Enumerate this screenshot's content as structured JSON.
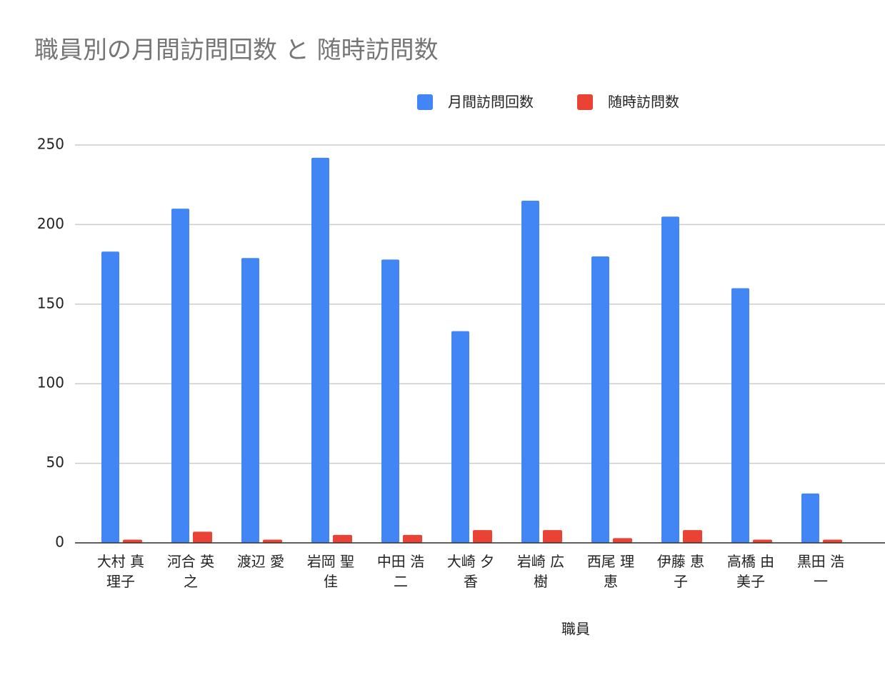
{
  "chart_data": {
    "type": "bar",
    "title": "職員別の月間訪問回数 と 随時訪問数",
    "x_label": "職員",
    "categories": [
      "大村 真理子",
      "河合 英之",
      "渡辺 愛",
      "岩岡 聖佳",
      "中田 浩二",
      "大崎 夕香",
      "岩崎 広樹",
      "西尾 理恵",
      "伊藤 恵子",
      "高橋 由美子",
      "黒田 浩一"
    ],
    "series": [
      {
        "name": "月間訪問回数",
        "color": "#4285f4",
        "values": [
          183,
          210,
          179,
          242,
          178,
          133,
          215,
          180,
          205,
          160,
          31
        ]
      },
      {
        "name": "随時訪問数",
        "color": "#ea4335",
        "values": [
          2,
          7,
          2,
          5,
          5,
          8,
          8,
          3,
          8,
          2,
          2
        ]
      }
    ],
    "ylim": [
      0,
      250
    ],
    "yticks": [
      0,
      50,
      100,
      150,
      200,
      250
    ],
    "grid": true,
    "legend": "top"
  }
}
